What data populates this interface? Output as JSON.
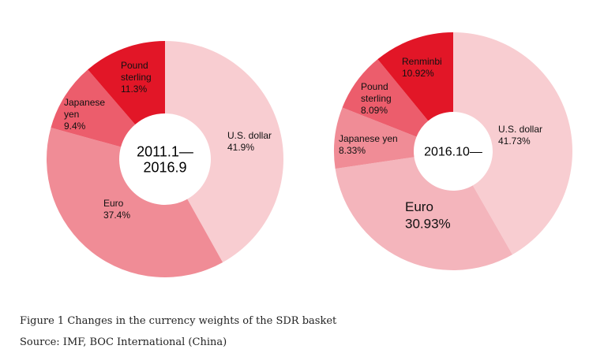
{
  "chart_data": [
    {
      "type": "pie",
      "center_label": [
        "2011.1—",
        "2016.9"
      ],
      "slices": [
        {
          "label": [
            "U.S. dollar"
          ],
          "value_text": "41.9%",
          "value": 41.9,
          "color": "#f8cdd1"
        },
        {
          "label": [
            "Euro"
          ],
          "value_text": "37.4%",
          "value": 37.4,
          "color": "#f08c96"
        },
        {
          "label": [
            "Japanese",
            "yen"
          ],
          "value_text": "9.4%",
          "value": 9.4,
          "color": "#ec5d6c"
        },
        {
          "label": [
            "Pound",
            "sterling"
          ],
          "value_text": "11.3%",
          "value": 11.3,
          "color": "#e21627"
        }
      ]
    },
    {
      "type": "pie",
      "center_label": [
        "2016.10—"
      ],
      "slices": [
        {
          "label": [
            "U.S. dollar"
          ],
          "value_text": "41.73%",
          "value": 41.73,
          "color": "#f8cdd1"
        },
        {
          "label": [
            "Euro"
          ],
          "value_text": "30.93%",
          "value": 30.93,
          "color": "#f4b5bc"
        },
        {
          "label": [
            "Japanese yen"
          ],
          "value_text": "8.33%",
          "value": 8.33,
          "color": "#f08c96"
        },
        {
          "label": [
            "Pound",
            "sterling"
          ],
          "value_text": "8.09%",
          "value": 8.09,
          "color": "#ec5d6c"
        },
        {
          "label": [
            "Renminbi"
          ],
          "value_text": "10.92%",
          "value": 10.92,
          "color": "#e21627"
        }
      ]
    }
  ],
  "caption": {
    "title": "Figure 1 Changes in the currency weights of the SDR basket",
    "source": "Source: IMF, BOC International (China)"
  }
}
